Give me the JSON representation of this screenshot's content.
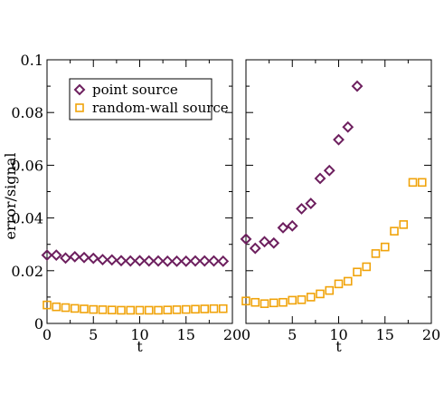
{
  "chart_data": [
    {
      "type": "scatter",
      "panel": "left",
      "xlabel": "t",
      "ylabel": "error/signal",
      "xlim": [
        0,
        20
      ],
      "ylim": [
        0,
        0.1
      ],
      "x_ticks": [
        "0",
        "5",
        "10",
        "15",
        "20"
      ],
      "y_ticks": [
        "0",
        "0.02",
        "0.04",
        "0.06",
        "0.08",
        "0.1"
      ],
      "legend": {
        "placement": "top-left",
        "entries": [
          "point source",
          "random-wall source"
        ]
      },
      "series": [
        {
          "name": "point source",
          "marker": "diamond",
          "color": "#6d1f5e",
          "x": [
            0,
            1,
            2,
            3,
            4,
            5,
            6,
            7,
            8,
            9,
            10,
            11,
            12,
            13,
            14,
            15,
            16,
            17,
            18,
            19
          ],
          "y": [
            0.0259,
            0.0259,
            0.0248,
            0.0253,
            0.025,
            0.0247,
            0.0242,
            0.0241,
            0.0238,
            0.0237,
            0.0238,
            0.0237,
            0.0237,
            0.0236,
            0.0236,
            0.0236,
            0.0237,
            0.0237,
            0.0237,
            0.0236
          ]
        },
        {
          "name": "random-wall source",
          "marker": "square",
          "color": "#f0a30a",
          "x": [
            0,
            1,
            2,
            3,
            4,
            5,
            6,
            7,
            8,
            9,
            10,
            11,
            12,
            13,
            14,
            15,
            16,
            17,
            18,
            19
          ],
          "y": [
            0.007,
            0.0063,
            0.006,
            0.0057,
            0.0055,
            0.0053,
            0.0052,
            0.0051,
            0.005,
            0.005,
            0.005,
            0.005,
            0.005,
            0.0051,
            0.0052,
            0.0053,
            0.0054,
            0.0055,
            0.0056,
            0.0056
          ]
        }
      ]
    },
    {
      "type": "scatter",
      "panel": "right",
      "xlabel": "t",
      "xlim": [
        0,
        20
      ],
      "ylim": [
        0,
        0.1
      ],
      "x_ticks": [
        "0",
        "5",
        "10",
        "15",
        "20"
      ],
      "series": [
        {
          "name": "point source",
          "marker": "diamond",
          "color": "#6d1f5e",
          "x": [
            0,
            1,
            2,
            3,
            4,
            5,
            6,
            7,
            8,
            9,
            10,
            11,
            12
          ],
          "y": [
            0.032,
            0.0285,
            0.031,
            0.0305,
            0.0363,
            0.037,
            0.0435,
            0.0455,
            0.055,
            0.058,
            0.0697,
            0.0745,
            0.09
          ]
        },
        {
          "name": "random-wall source",
          "marker": "square",
          "color": "#f0a30a",
          "x": [
            0,
            1,
            2,
            3,
            4,
            5,
            6,
            7,
            8,
            9,
            10,
            11,
            12,
            13,
            14,
            15,
            16,
            17,
            18,
            19
          ],
          "y": [
            0.0085,
            0.008,
            0.0075,
            0.0078,
            0.008,
            0.0088,
            0.009,
            0.01,
            0.0112,
            0.0125,
            0.015,
            0.016,
            0.0195,
            0.0215,
            0.0265,
            0.029,
            0.035,
            0.0375,
            0.0535,
            0.0535
          ]
        }
      ]
    }
  ]
}
